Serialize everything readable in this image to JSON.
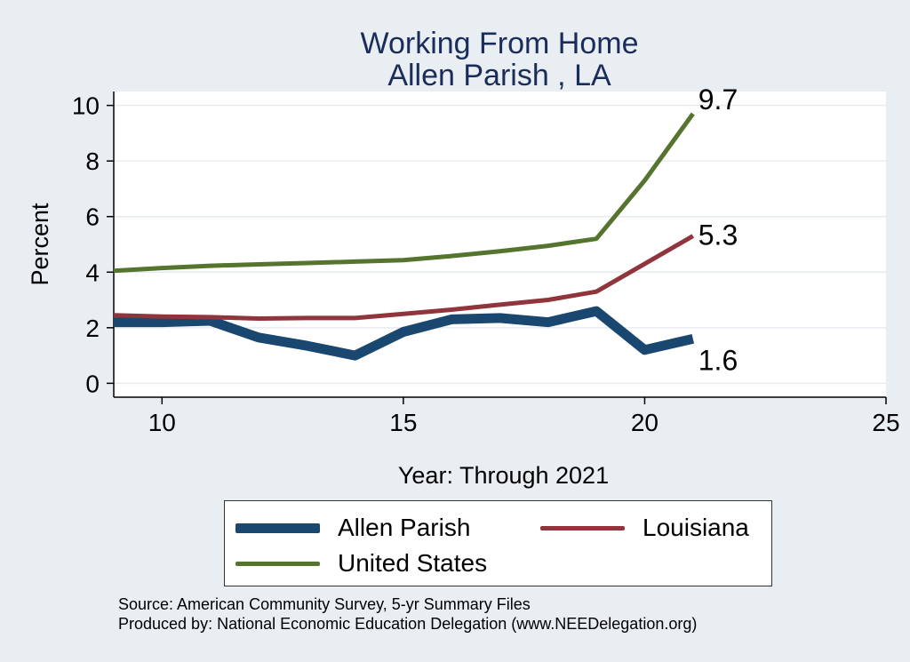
{
  "chart_data": {
    "type": "line",
    "title": "Working From Home",
    "subtitle": "Allen Parish , LA",
    "xlabel": "Year: Through 2021",
    "ylabel": "Percent",
    "xlim": [
      9,
      25
    ],
    "ylim": [
      -0.5,
      10.5
    ],
    "xticks": [
      10,
      15,
      20,
      25
    ],
    "yticks": [
      0,
      2,
      4,
      6,
      8,
      10
    ],
    "x": [
      9,
      10,
      11,
      12,
      13,
      14,
      15,
      16,
      17,
      18,
      19,
      20,
      21
    ],
    "series": [
      {
        "name": "Allen Parish",
        "color": "#1a476f",
        "width": 11,
        "values": [
          2.2,
          2.2,
          2.25,
          1.65,
          1.35,
          1.0,
          1.85,
          2.3,
          2.35,
          2.2,
          2.6,
          1.2,
          1.6
        ],
        "end_label": "1.6"
      },
      {
        "name": "Louisiana",
        "color": "#90353b",
        "width": 5,
        "values": [
          2.45,
          2.4,
          2.38,
          2.33,
          2.35,
          2.35,
          2.5,
          2.65,
          2.83,
          3.0,
          3.3,
          4.3,
          5.3
        ],
        "end_label": "5.3"
      },
      {
        "name": "United States",
        "color": "#55752f",
        "width": 5,
        "values": [
          4.05,
          4.15,
          4.23,
          4.28,
          4.33,
          4.38,
          4.43,
          4.58,
          4.75,
          4.95,
          5.2,
          7.3,
          9.7
        ],
        "end_label": "9.7"
      }
    ],
    "grid": true,
    "legend": "bottom"
  },
  "footnotes": {
    "source": "Source: American Community Survey, 5-yr Summary Files",
    "produced": "Produced by: National Economic Education Delegation (www.NEEDelegation.org)"
  }
}
